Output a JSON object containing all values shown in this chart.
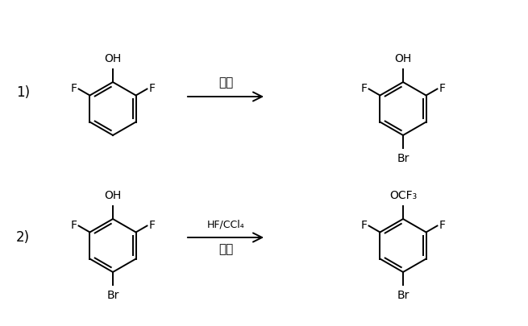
{
  "bg_color": "#ffffff",
  "line_color": "#000000",
  "label1": "1)",
  "label2": "2)",
  "arrow1_label": "溴代",
  "arrow2_line1": "HF/CCl₄",
  "arrow2_line2": "偶联",
  "OH_label": "OH",
  "F_label": "F",
  "Br_label": "Br",
  "OCF3_label": "OCF₃",
  "fig_width": 6.55,
  "fig_height": 4.05,
  "dpi": 100
}
